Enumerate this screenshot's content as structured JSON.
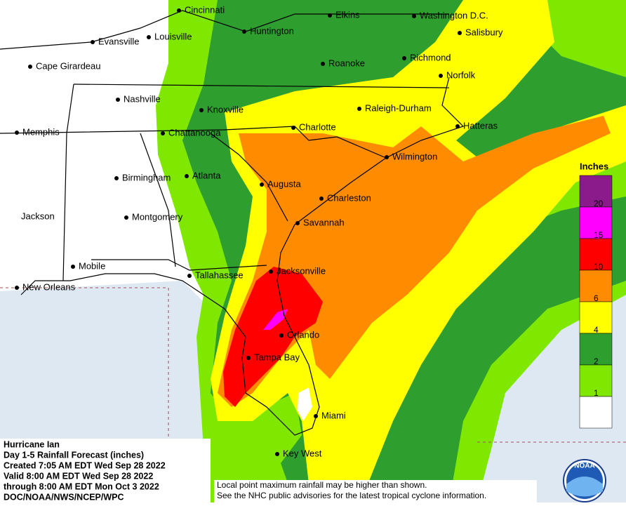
{
  "info": {
    "lines": [
      "Hurricane Ian",
      "Day 1-5 Rainfall Forecast (inches)",
      "Created 7:05 AM EDT Wed Sep 28 2022",
      "Valid 8:00 AM EDT Wed Sep 28 2022",
      "through 8:00 AM EDT Mon Oct 3 2022",
      "DOC/NOAA/NWS/NCEP/WPC"
    ]
  },
  "legend": {
    "title": "Inches",
    "levels": [
      {
        "label": "20",
        "color": "#8b1a8b"
      },
      {
        "label": "15",
        "color": "#ff00ff"
      },
      {
        "label": "10",
        "color": "#ff0000"
      },
      {
        "label": "6",
        "color": "#ff8c00"
      },
      {
        "label": "4",
        "color": "#ffff00"
      },
      {
        "label": "2",
        "color": "#2e9e2e"
      },
      {
        "label": "1",
        "color": "#80e800"
      }
    ],
    "below_color": "#ffffff"
  },
  "cities": [
    "Cincinnati",
    "Elkins",
    "Washington D.C.",
    "Salisbury",
    "Huntington",
    "Evansville",
    "Louisville",
    "Cape Girardeau",
    "Roanoke",
    "Richmond",
    "Norfolk",
    "Nashville",
    "Knoxville",
    "Raleigh-Durham",
    "Hatteras",
    "Memphis",
    "Chattanooga",
    "Charlotte",
    "Wilmington",
    "Birmingham",
    "Atlanta",
    "Augusta",
    "Charleston",
    "Jackson",
    "Montgomery",
    "Savannah",
    "Mobile",
    "New Orleans",
    "Tallahassee",
    "Jacksonville",
    "Orlando",
    "Tampa Bay",
    "Miami",
    "Key West"
  ],
  "disclaimer": [
    "Local point maximum rainfall may be higher than shown.",
    "See the NHC public advisories for the latest tropical cyclone information."
  ],
  "logo": "NOAA"
}
